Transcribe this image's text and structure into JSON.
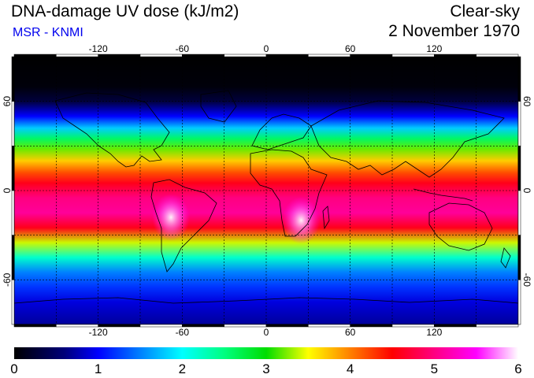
{
  "header": {
    "title": "DNA-damage UV dose (kJ/m2)",
    "source": "MSR - KNMI",
    "condition": "Clear-sky",
    "date": "2 November 1970"
  },
  "map": {
    "projection": "plate-carree",
    "lon_range": [
      -180,
      180
    ],
    "lat_range": [
      -90,
      90
    ],
    "lon_ticks": [
      -120,
      -60,
      0,
      60,
      120
    ],
    "lat_ticks": [
      60,
      0,
      -60
    ],
    "lon_tick_labels": [
      "-120",
      "-60",
      "0",
      "60",
      "120"
    ],
    "lat_tick_labels": [
      "60",
      "0",
      "-60"
    ],
    "gridlines": "dashed",
    "lat_profile": [
      {
        "lat": 90,
        "dose": 0.0
      },
      {
        "lat": 70,
        "dose": 0.05
      },
      {
        "lat": 60,
        "dose": 0.3
      },
      {
        "lat": 50,
        "dose": 1.0
      },
      {
        "lat": 42,
        "dose": 1.8
      },
      {
        "lat": 35,
        "dose": 2.6
      },
      {
        "lat": 28,
        "dose": 3.2
      },
      {
        "lat": 20,
        "dose": 3.7
      },
      {
        "lat": 12,
        "dose": 4.2
      },
      {
        "lat": 5,
        "dose": 4.6
      },
      {
        "lat": -5,
        "dose": 5.0
      },
      {
        "lat": -15,
        "dose": 5.1
      },
      {
        "lat": -25,
        "dose": 4.6
      },
      {
        "lat": -35,
        "dose": 3.4
      },
      {
        "lat": -45,
        "dose": 2.2
      },
      {
        "lat": -55,
        "dose": 1.5
      },
      {
        "lat": -65,
        "dose": 1.2
      },
      {
        "lat": -75,
        "dose": 0.9
      },
      {
        "lat": -90,
        "dose": 0.7
      }
    ],
    "hotspots": [
      {
        "name": "Southern Africa",
        "lon": 25,
        "lat": -20,
        "dose": 6.0
      },
      {
        "name": "Andes",
        "lon": -68,
        "lat": -18,
        "dose": 6.0
      }
    ]
  },
  "colorbar": {
    "min": 0,
    "max": 6,
    "labels": [
      "0",
      "1",
      "2",
      "3",
      "4",
      "5",
      "6"
    ],
    "colors": [
      {
        "v": 0.0,
        "c": "#000000"
      },
      {
        "v": 0.6,
        "c": "#00007a"
      },
      {
        "v": 1.0,
        "c": "#0000ff"
      },
      {
        "v": 1.5,
        "c": "#0080ff"
      },
      {
        "v": 2.0,
        "c": "#00ffff"
      },
      {
        "v": 2.5,
        "c": "#00ff80"
      },
      {
        "v": 3.0,
        "c": "#00dd00"
      },
      {
        "v": 3.5,
        "c": "#ffff00"
      },
      {
        "v": 4.0,
        "c": "#ff8000"
      },
      {
        "v": 4.5,
        "c": "#ff0000"
      },
      {
        "v": 5.0,
        "c": "#ff0080"
      },
      {
        "v": 5.5,
        "c": "#ff00ff"
      },
      {
        "v": 6.0,
        "c": "#ffffff"
      }
    ]
  }
}
